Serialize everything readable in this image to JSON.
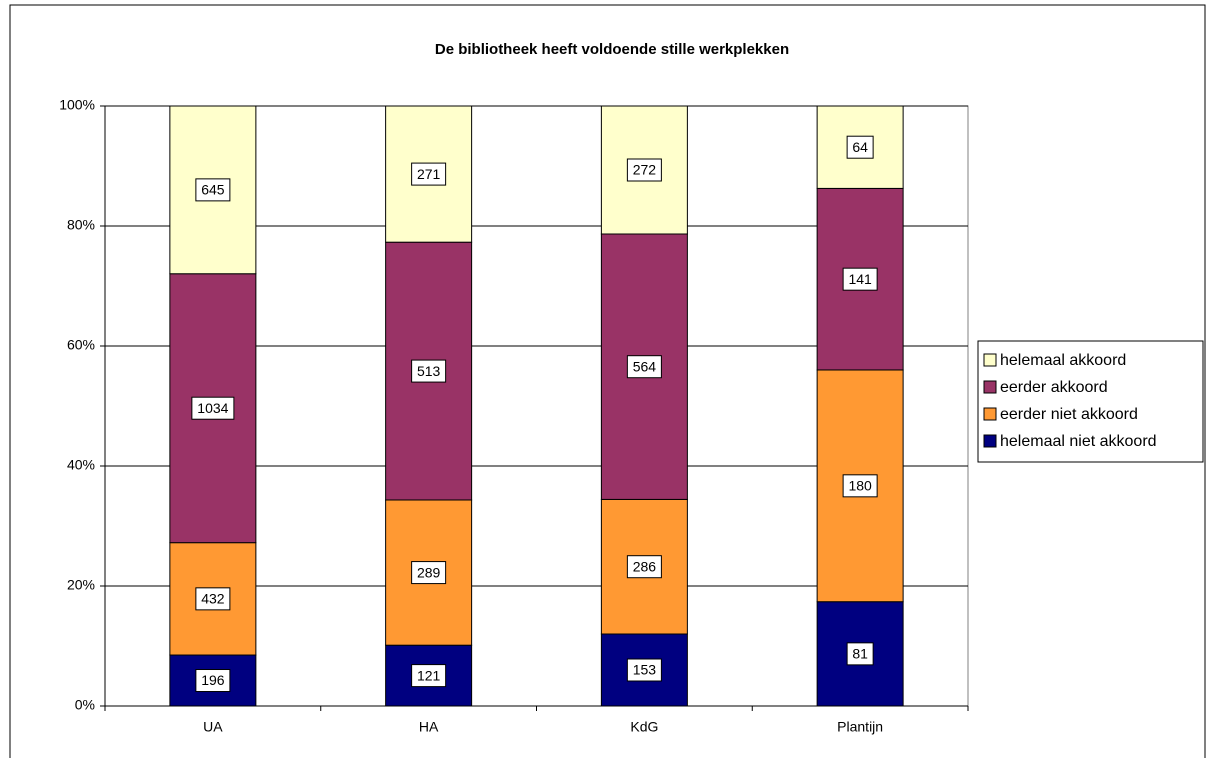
{
  "chart_data": {
    "type": "bar",
    "stacking": "percent",
    "title": "De bibliotheek heeft voldoende stille werkplekken",
    "categories": [
      "UA",
      "HA",
      "KdG",
      "Plantijn"
    ],
    "series": [
      {
        "name": "helemaal niet akkoord",
        "color": "#000080",
        "values": [
          196,
          121,
          153,
          81
        ]
      },
      {
        "name": "eerder niet akkoord",
        "color": "#ff9933",
        "values": [
          432,
          289,
          286,
          180
        ]
      },
      {
        "name": "eerder akkoord",
        "color": "#993366",
        "values": [
          1034,
          513,
          564,
          141
        ]
      },
      {
        "name": "helemaal akkoord",
        "color": "#ffffcc",
        "values": [
          645,
          271,
          272,
          64
        ]
      }
    ],
    "ylim": [
      0,
      100
    ],
    "yticks": [
      {
        "value": 0,
        "label": "0%"
      },
      {
        "value": 20,
        "label": "20%"
      },
      {
        "value": 40,
        "label": "40%"
      },
      {
        "value": 60,
        "label": "60%"
      },
      {
        "value": 80,
        "label": "80%"
      },
      {
        "value": 100,
        "label": "100%"
      }
    ],
    "grid": true,
    "legend": "right"
  }
}
